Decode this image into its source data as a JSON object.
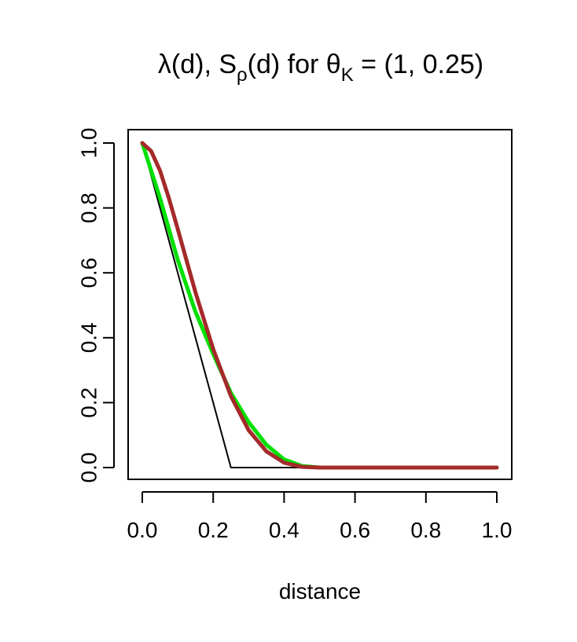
{
  "chart_data": {
    "type": "line",
    "title": "λ(d), Sρ(d) for θK = (1, 0.25)",
    "title_parts": {
      "lambda": "λ",
      "arg1": "(d), S",
      "rho": "ρ",
      "arg2": "(d) for θ",
      "k": "K",
      "eq": " = ",
      "params": "(1, 0.25)"
    },
    "xlabel": "distance",
    "ylabel": "",
    "xlim": [
      0,
      1
    ],
    "ylim": [
      0,
      1
    ],
    "x_ticks": [
      0.0,
      0.2,
      0.4,
      0.6,
      0.8,
      1.0
    ],
    "x_tick_labels": [
      "0.0",
      "0.2",
      "0.4",
      "0.6",
      "0.8",
      "1.0"
    ],
    "y_ticks": [
      0.0,
      0.2,
      0.4,
      0.6,
      0.8,
      1.0
    ],
    "y_tick_labels": [
      "0.0",
      "0.2",
      "0.4",
      "0.6",
      "0.8",
      "1.0"
    ],
    "grid": false,
    "legend": "none",
    "series": [
      {
        "color": "#000000",
        "x": [
          0.0,
          0.25,
          1.0
        ],
        "y": [
          1.0,
          0.0,
          0.0
        ]
      },
      {
        "color": "#00e000",
        "x": [
          0.0,
          0.05,
          0.1,
          0.15,
          0.2,
          0.25,
          0.3,
          0.35,
          0.4,
          0.45,
          0.5,
          0.6,
          0.8,
          1.0
        ],
        "y": [
          1.0,
          0.83,
          0.64,
          0.48,
          0.35,
          0.23,
          0.14,
          0.07,
          0.025,
          0.005,
          0.0,
          0.0,
          0.0,
          0.0
        ]
      },
      {
        "color": "#a52a2a",
        "x": [
          0.0,
          0.025,
          0.05,
          0.075,
          0.1,
          0.15,
          0.2,
          0.25,
          0.3,
          0.35,
          0.4,
          0.45,
          0.5,
          0.6,
          0.8,
          1.0
        ],
        "y": [
          1.0,
          0.975,
          0.915,
          0.83,
          0.735,
          0.54,
          0.365,
          0.22,
          0.115,
          0.05,
          0.015,
          0.002,
          0.0,
          0.0,
          0.0,
          0.0
        ]
      }
    ]
  }
}
